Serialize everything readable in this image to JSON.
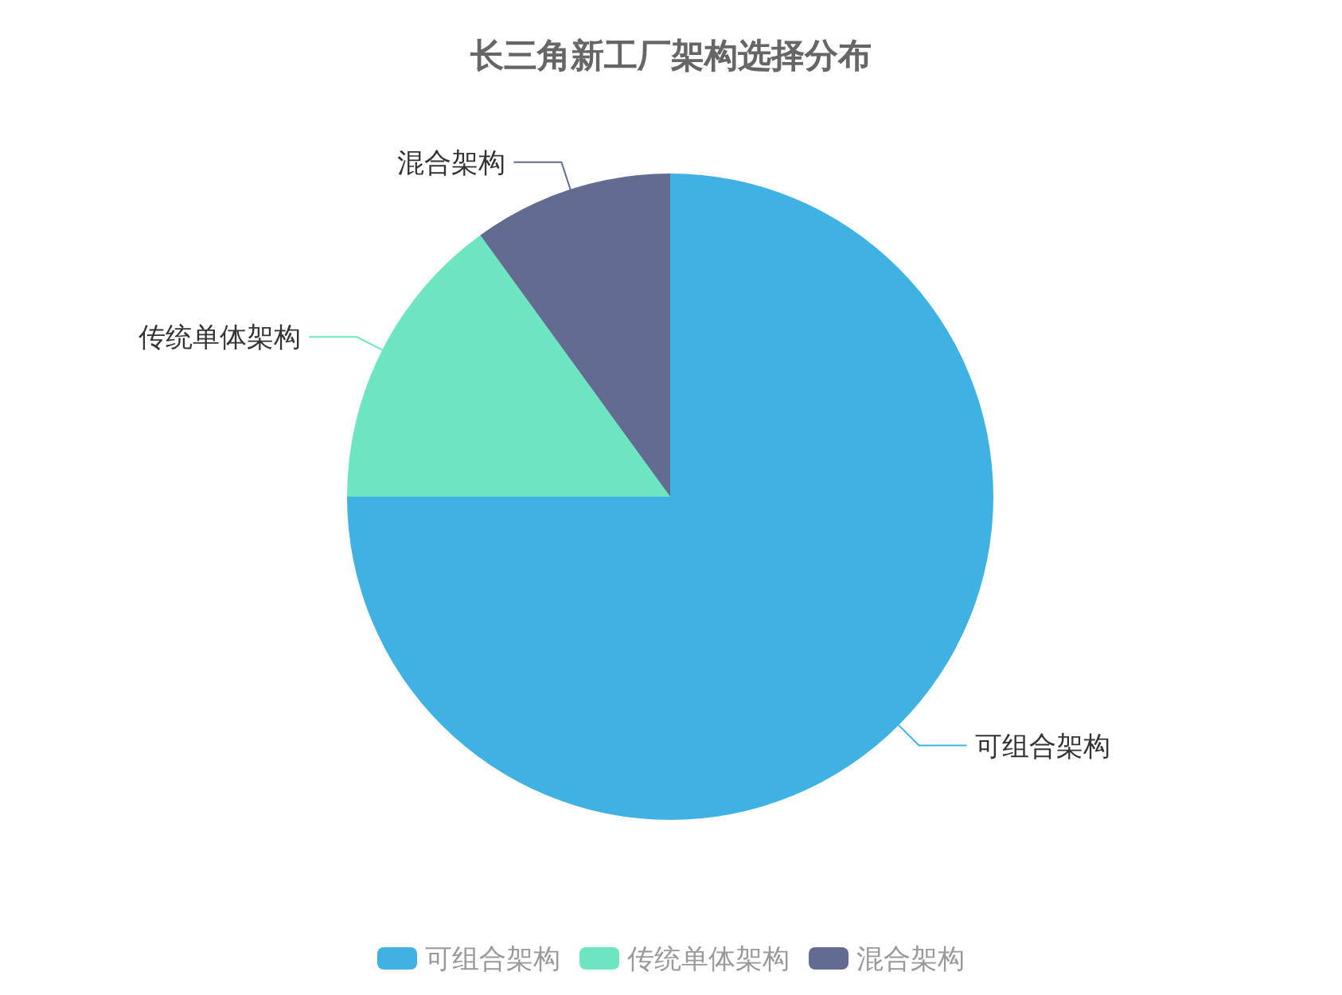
{
  "chart_data": {
    "type": "pie",
    "title": "长三角新工厂架构选择分布",
    "categories": [
      "可组合架构",
      "传统单体架构",
      "混合架构"
    ],
    "values": [
      75,
      15,
      10
    ],
    "colors": [
      "#3fb1e3",
      "#6be6c1",
      "#626c91"
    ],
    "legend": "bottom"
  }
}
